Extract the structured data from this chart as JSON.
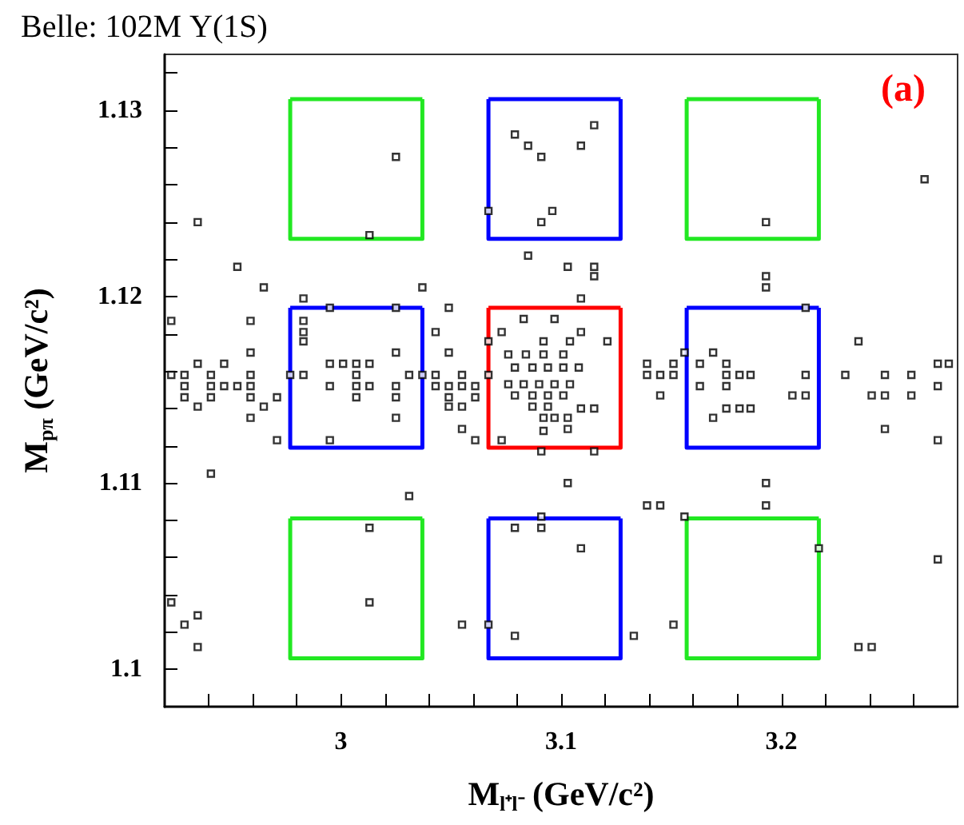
{
  "chart_data": {
    "type": "scatter",
    "title": "Belle: 102M Υ(1S)",
    "xlabel": "M$_{l⁺l⁻}$ (GeV/c²)",
    "ylabel": "M$_{pπ}$ (GeV/c²)",
    "annotations": [
      "(a)"
    ],
    "xlim": [
      2.92,
      3.28
    ],
    "ylim": [
      1.098,
      1.133
    ],
    "xticks": [
      {
        "value": 2.94,
        "label": null
      },
      {
        "value": 2.96,
        "label": null
      },
      {
        "value": 2.98,
        "label": null
      },
      3,
      {
        "value": 3.02,
        "label": null
      },
      {
        "value": 3.04,
        "label": null
      },
      {
        "value": 3.06,
        "label": null
      },
      {
        "value": 3.08,
        "label": null
      },
      3.1,
      {
        "value": 3.12,
        "label": null
      },
      {
        "value": 3.14,
        "label": null
      },
      {
        "value": 3.16,
        "label": null
      },
      {
        "value": 3.18,
        "label": null
      },
      3.2,
      {
        "value": 3.22,
        "label": null
      },
      {
        "value": 3.24,
        "label": null
      },
      {
        "value": 3.26,
        "label": null
      }
    ],
    "yticks": [
      {
        "value": 1.1,
        "label": "1.1"
      },
      {
        "value": 1.102,
        "label": null
      },
      {
        "value": 1.104,
        "label": null
      },
      {
        "value": 1.106,
        "label": null
      },
      {
        "value": 1.108,
        "label": null
      },
      1.11,
      {
        "value": 1.112,
        "label": null
      },
      {
        "value": 1.114,
        "label": null
      },
      {
        "value": 1.116,
        "label": null
      },
      {
        "value": 1.118,
        "label": null
      },
      1.12,
      {
        "value": 1.122,
        "label": null
      },
      {
        "value": 1.124,
        "label": null
      },
      {
        "value": 1.126,
        "label": null
      },
      {
        "value": 1.128,
        "label": null
      },
      1.13,
      {
        "value": 1.132,
        "label": null
      }
    ],
    "grid": false,
    "marker": "square",
    "series": [
      {
        "color": "#000000",
        "x": [
          3.025,
          3.013,
          2.935,
          2.953,
          2.965,
          2.983,
          3.037,
          2.923,
          2.959,
          2.995,
          3.025,
          3.049,
          2.983,
          2.983,
          2.983,
          3.043,
          2.959,
          2.935,
          2.947,
          3.025,
          3.049,
          2.995,
          3.001,
          3.007,
          3.013,
          3.079,
          3.085,
          3.091,
          3.067,
          3.091,
          3.096,
          3.085,
          3.073,
          3.067,
          3.115,
          3.109,
          3.193,
          3.265,
          3.103,
          3.115,
          3.115,
          3.109,
          3.193,
          3.193,
          3.211,
          3.235,
          3.169,
          3.156,
          3.271,
          3.276,
          3.139,
          3.151,
          3.163,
          3.175,
          3.121,
          3.109,
          2.929,
          2.941,
          2.947,
          2.953,
          2.959,
          2.929,
          2.941,
          2.935,
          2.959,
          2.965,
          2.959,
          2.971,
          2.971,
          2.995,
          3.007,
          3.013,
          3.025,
          3.007,
          3.025,
          3.025,
          2.995,
          3.043,
          3.049,
          3.055,
          3.061,
          3.049,
          3.061,
          3.049,
          3.055,
          3.055,
          3.061,
          3.073,
          2.941,
          3.031,
          3.013,
          3.013,
          2.923,
          2.935,
          2.929,
          2.935,
          3.055,
          3.067,
          3.079,
          3.079,
          3.091,
          3.091,
          3.091,
          3.103,
          3.139,
          3.145,
          3.115,
          3.193,
          3.193,
          3.109,
          3.156,
          3.217,
          3.271,
          3.133,
          3.151,
          3.235,
          3.241,
          3.271,
          3.247,
          3.241,
          3.247,
          3.259,
          3.271,
          3.205,
          3.211,
          3.175,
          3.181,
          3.186,
          3.169,
          3.145,
          3.175,
          3.163,
          3.115,
          3.109,
          3.097,
          3.103,
          3.103,
          2.923,
          2.929,
          2.941,
          2.959,
          2.977,
          2.983,
          3.007,
          3.031,
          3.037,
          3.043,
          3.055,
          3.067,
          3.139,
          3.145,
          3.151,
          3.175,
          3.181,
          3.186,
          3.211,
          3.229,
          3.247,
          3.259,
          3.076,
          3.084,
          3.092,
          3.101,
          3.079,
          3.087,
          3.094,
          3.101,
          3.108,
          3.076,
          3.083,
          3.09,
          3.097,
          3.104,
          3.079,
          3.087,
          3.094,
          3.101,
          3.087,
          3.094,
          3.092,
          3.092,
          3.083,
          3.097,
          3.092,
          3.104
        ],
        "values": [
          1.1275,
          1.1233,
          1.124,
          1.1216,
          1.1205,
          1.1199,
          1.1205,
          1.1187,
          1.1187,
          1.1194,
          1.1194,
          1.1194,
          1.1187,
          1.1181,
          1.1176,
          1.1181,
          1.117,
          1.1164,
          1.1164,
          1.117,
          1.117,
          1.1164,
          1.1164,
          1.1164,
          1.1164,
          1.1287,
          1.1281,
          1.1275,
          1.1246,
          1.124,
          1.1246,
          1.1222,
          1.1181,
          1.1176,
          1.1292,
          1.1281,
          1.124,
          1.1263,
          1.1216,
          1.1216,
          1.1211,
          1.1199,
          1.1211,
          1.1205,
          1.1194,
          1.1176,
          1.117,
          1.117,
          1.1164,
          1.1164,
          1.1164,
          1.1164,
          1.1164,
          1.1164,
          1.1176,
          1.1181,
          1.1152,
          1.1152,
          1.1152,
          1.1152,
          1.1152,
          1.1146,
          1.1146,
          1.1141,
          1.1146,
          1.1141,
          1.1135,
          1.1146,
          1.1123,
          1.1152,
          1.1152,
          1.1152,
          1.1152,
          1.1146,
          1.1146,
          1.1135,
          1.1123,
          1.1152,
          1.1152,
          1.1152,
          1.1152,
          1.1146,
          1.1146,
          1.1141,
          1.1141,
          1.1129,
          1.1123,
          1.1123,
          1.1105,
          1.1093,
          1.1076,
          1.1036,
          1.1036,
          1.1029,
          1.1024,
          1.1012,
          1.1024,
          1.1024,
          1.1018,
          1.1076,
          1.1076,
          1.1082,
          1.1117,
          1.11,
          1.1088,
          1.1088,
          1.1117,
          1.11,
          1.1088,
          1.1065,
          1.1082,
          1.1065,
          1.1059,
          1.1018,
          1.1024,
          1.1012,
          1.1012,
          1.1123,
          1.1129,
          1.1147,
          1.1147,
          1.1147,
          1.1152,
          1.1147,
          1.1147,
          1.114,
          1.114,
          1.114,
          1.1135,
          1.1147,
          1.1152,
          1.1152,
          1.114,
          1.114,
          1.1135,
          1.1135,
          1.1129,
          1.1158,
          1.1158,
          1.1158,
          1.1158,
          1.1158,
          1.1158,
          1.1158,
          1.1158,
          1.1158,
          1.1158,
          1.1158,
          1.1158,
          1.1158,
          1.1158,
          1.1158,
          1.1158,
          1.1158,
          1.1158,
          1.1158,
          1.1158,
          1.1158,
          1.1158,
          1.1169,
          1.1169,
          1.1169,
          1.1169,
          1.1162,
          1.1162,
          1.1162,
          1.1162,
          1.1162,
          1.1153,
          1.1153,
          1.1153,
          1.1153,
          1.1153,
          1.1147,
          1.1147,
          1.1147,
          1.1147,
          1.1141,
          1.1141,
          1.1135,
          1.1128,
          1.1188,
          1.1188,
          1.1176,
          1.1176
        ]
      },
      {
        "type": "line",
        "marker": "none",
        "color": "#22e822",
        "x": [
          2.977,
          2.977,
          3.037,
          3.037
        ],
        "values": [
          1.1306,
          1.1231,
          1.1231,
          1.1306
        ]
      },
      {
        "type": "line",
        "marker": "none",
        "color": "#22e822",
        "x": [
          2.977,
          3.037
        ],
        "values": [
          1.1306,
          1.1306
        ]
      },
      {
        "type": "line",
        "marker": "none",
        "color": "#0000ff",
        "x": [
          3.067,
          3.067,
          3.127,
          3.127
        ],
        "values": [
          1.1306,
          1.1231,
          1.1231,
          1.1306
        ]
      },
      {
        "type": "line",
        "marker": "none",
        "color": "#0000ff",
        "x": [
          3.067,
          3.127
        ],
        "values": [
          1.1306,
          1.1306
        ]
      },
      {
        "type": "line",
        "marker": "none",
        "color": "#22e822",
        "x": [
          3.157,
          3.157,
          3.217,
          3.217
        ],
        "values": [
          1.1306,
          1.1231,
          1.1231,
          1.1306
        ]
      },
      {
        "type": "line",
        "marker": "none",
        "color": "#22e822",
        "x": [
          3.157,
          3.217
        ],
        "values": [
          1.1306,
          1.1306
        ]
      },
      {
        "type": "line",
        "marker": "none",
        "color": "#0000ff",
        "x": [
          2.977,
          2.977,
          3.037,
          3.037
        ],
        "values": [
          1.1194,
          1.1119,
          1.1119,
          1.1194
        ]
      },
      {
        "type": "line",
        "marker": "none",
        "color": "#0000ff",
        "x": [
          2.977,
          3.037
        ],
        "values": [
          1.1194,
          1.1194
        ]
      },
      {
        "type": "line",
        "marker": "none",
        "color": "#ff0000",
        "x": [
          3.067,
          3.067,
          3.127,
          3.127
        ],
        "values": [
          1.1194,
          1.1119,
          1.1119,
          1.1194
        ]
      },
      {
        "type": "line",
        "marker": "none",
        "color": "#ff0000",
        "x": [
          3.067,
          3.127
        ],
        "values": [
          1.1194,
          1.1194
        ]
      },
      {
        "type": "line",
        "marker": "none",
        "color": "#0000ff",
        "x": [
          3.157,
          3.157,
          3.217,
          3.217
        ],
        "values": [
          1.1194,
          1.1119,
          1.1119,
          1.1194
        ]
      },
      {
        "type": "line",
        "marker": "none",
        "color": "#0000ff",
        "x": [
          3.157,
          3.217
        ],
        "values": [
          1.1194,
          1.1194
        ]
      },
      {
        "type": "line",
        "marker": "none",
        "color": "#22e822",
        "x": [
          2.977,
          2.977,
          3.037,
          3.037
        ],
        "values": [
          1.1081,
          1.1006,
          1.1006,
          1.1081
        ]
      },
      {
        "type": "line",
        "marker": "none",
        "color": "#22e822",
        "x": [
          2.977,
          3.037
        ],
        "values": [
          1.1081,
          1.1081
        ]
      },
      {
        "type": "line",
        "marker": "none",
        "color": "#0000ff",
        "x": [
          3.067,
          3.067,
          3.127,
          3.127
        ],
        "values": [
          1.1081,
          1.1006,
          1.1006,
          1.1081
        ]
      },
      {
        "type": "line",
        "marker": "none",
        "color": "#0000ff",
        "x": [
          3.067,
          3.127
        ],
        "values": [
          1.1081,
          1.1081
        ]
      },
      {
        "type": "line",
        "marker": "none",
        "color": "#22e822",
        "x": [
          3.157,
          3.157,
          3.217,
          3.217
        ],
        "values": [
          1.1081,
          1.1006,
          1.1006,
          1.1081
        ]
      },
      {
        "type": "line",
        "marker": "none",
        "color": "#22e822",
        "x": [
          3.157,
          3.217
        ],
        "values": [
          1.1081,
          1.1081
        ]
      }
    ]
  }
}
